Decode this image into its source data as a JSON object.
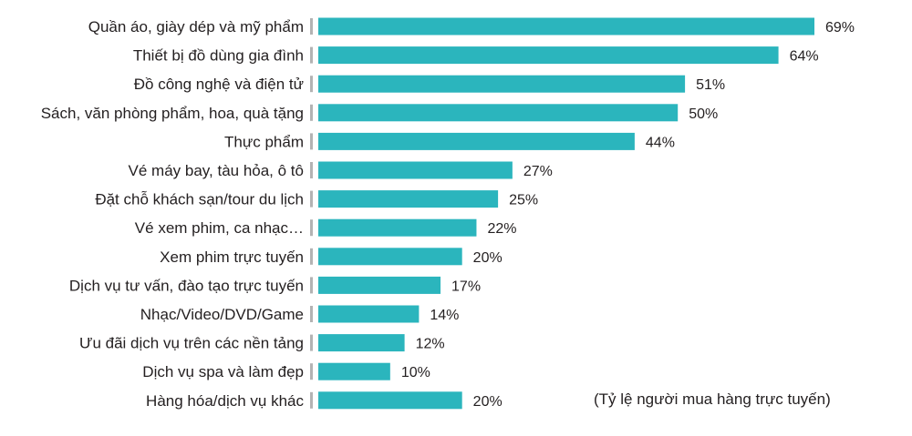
{
  "chart_data": {
    "type": "bar",
    "orientation": "horizontal",
    "categories": [
      "Quần áo, giày dép và mỹ phẩm",
      "Thiết bị đồ dùng gia đình",
      "Đồ công nghệ và điện tử",
      "Sách, văn phòng phẩm, hoa, quà tặng",
      "Thực phẩm",
      "Vé máy bay, tàu hỏa, ô tô",
      "Đặt chỗ khách sạn/tour du lịch",
      "Vé xem phim, ca nhạc…",
      "Xem phim trực tuyến",
      "Dịch vụ tư vấn, đào tạo trực tuyến",
      "Nhạc/Video/DVD/Game",
      "Ưu đãi dịch vụ trên các nền tảng",
      "Dịch vụ spa và làm đẹp",
      "Hàng hóa/dịch vụ khác"
    ],
    "values": [
      69,
      64,
      51,
      50,
      44,
      27,
      25,
      22,
      20,
      17,
      14,
      12,
      10,
      20
    ],
    "value_labels": [
      "69%",
      "64%",
      "51%",
      "50%",
      "44%",
      "27%",
      "25%",
      "22%",
      "20%",
      "17%",
      "14%",
      "12%",
      "10%",
      "20%"
    ],
    "unit": "%",
    "note": "(Tỷ lệ người mua hàng trực tuyến)",
    "bar_color": "#2bb5bd",
    "axis_marker_color": "#b3b3b3",
    "grid": false,
    "legend": "none"
  }
}
